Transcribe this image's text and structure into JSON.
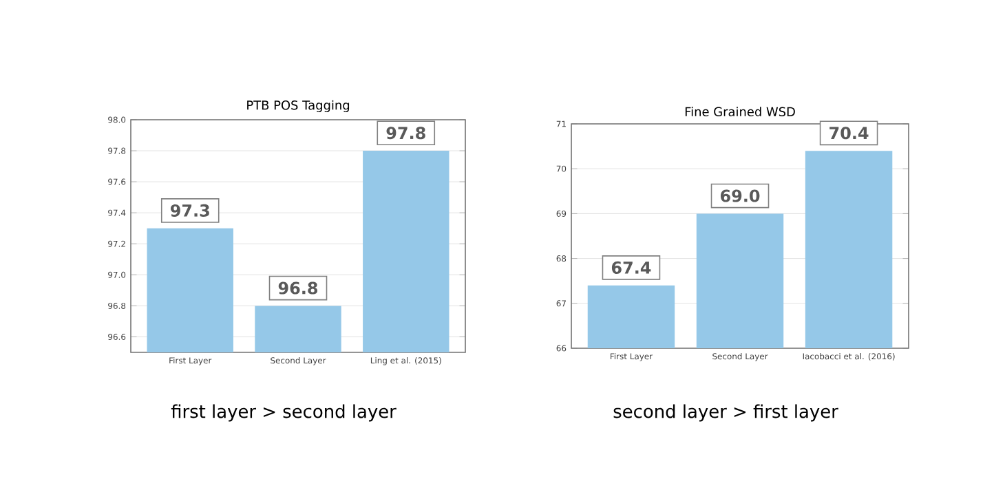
{
  "chart_data": [
    {
      "type": "bar",
      "title": "PTB POS Tagging",
      "categories": [
        "First Layer",
        "Second Layer",
        "Ling et al. (2015)"
      ],
      "values": [
        97.3,
        96.8,
        97.8
      ],
      "value_labels": [
        "97.3",
        "96.8",
        "97.8"
      ],
      "color": "#95c8e8",
      "ylim": [
        96.5,
        98.0
      ],
      "yticks": [
        {
          "value": 96.6,
          "label": "96.6"
        },
        {
          "value": 96.8,
          "label": "96.8"
        },
        {
          "value": 97.0,
          "label": "97.0"
        },
        {
          "value": 97.2,
          "label": "97.2"
        },
        {
          "value": 97.4,
          "label": "97.4"
        },
        {
          "value": 97.6,
          "label": "97.6"
        },
        {
          "value": 97.8,
          "label": "97.8"
        },
        {
          "value": 98.0,
          "label": "98.0"
        }
      ],
      "grid": "y",
      "annotations": [
        "first layer > second layer"
      ]
    },
    {
      "type": "bar",
      "title": "Fine Grained WSD",
      "categories": [
        "First Layer",
        "Second Layer",
        "Iacobacci et al. (2016)"
      ],
      "values": [
        67.4,
        69.0,
        70.4
      ],
      "value_labels": [
        "67.4",
        "69.0",
        "70.4"
      ],
      "color": "#95c8e8",
      "ylim": [
        66,
        71
      ],
      "yticks": [
        66,
        67,
        68,
        69,
        70,
        71
      ],
      "grid": "y",
      "annotations": [
        "second layer > first layer"
      ]
    }
  ]
}
